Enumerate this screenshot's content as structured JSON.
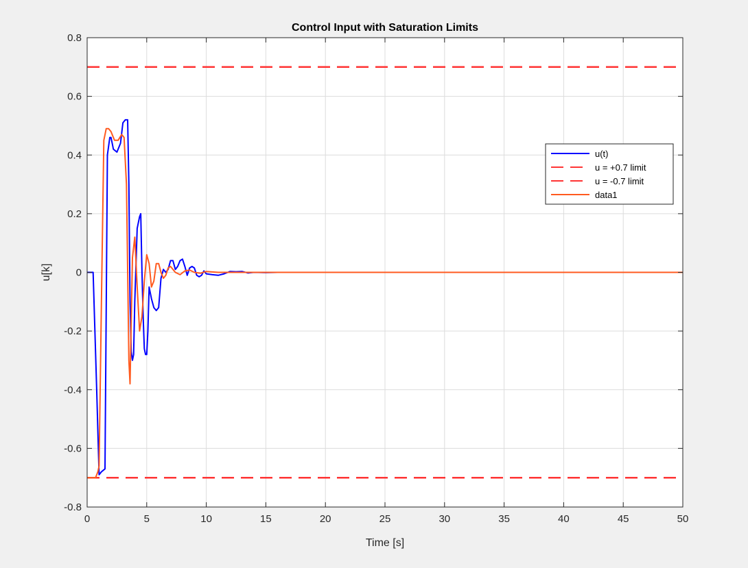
{
  "chart_data": {
    "type": "line",
    "title": "Control Input with Saturation Limits",
    "xlabel": "Time [s]",
    "ylabel": "u[k]",
    "xlim": [
      0,
      50
    ],
    "ylim": [
      -0.8,
      0.8
    ],
    "xticks": [
      0,
      5,
      10,
      15,
      20,
      25,
      30,
      35,
      40,
      45,
      50
    ],
    "xtick_labels": [
      "0",
      "5",
      "10",
      "15",
      "20",
      "25",
      "30",
      "35",
      "40",
      "45",
      "50"
    ],
    "yticks": [
      -0.8,
      -0.6,
      -0.4,
      -0.2,
      0,
      0.2,
      0.4,
      0.6,
      0.8
    ],
    "ytick_labels": [
      "-0.8",
      "-0.6",
      "-0.4",
      "-0.2",
      "0",
      "0.2",
      "0.4",
      "0.6",
      "0.8"
    ],
    "grid": true,
    "legend_position": "top-right",
    "series": [
      {
        "name": "u(t)",
        "color": "#0000ff",
        "style": "solid",
        "x": [
          0,
          0.5,
          0.8,
          1.0,
          1.2,
          1.5,
          1.7,
          1.9,
          2.0,
          2.1,
          2.2,
          2.5,
          2.8,
          3.0,
          3.2,
          3.4,
          3.5,
          3.6,
          3.7,
          3.8,
          3.9,
          4.0,
          4.2,
          4.4,
          4.5,
          4.6,
          4.7,
          4.8,
          4.9,
          5.0,
          5.1,
          5.2,
          5.4,
          5.6,
          5.8,
          6.0,
          6.2,
          6.4,
          6.6,
          6.8,
          7.0,
          7.2,
          7.4,
          7.6,
          7.8,
          8.0,
          8.2,
          8.4,
          8.6,
          8.8,
          9.0,
          9.2,
          9.4,
          9.6,
          9.8,
          10.0,
          10.5,
          11.0,
          11.5,
          12.0,
          12.5,
          13.0,
          13.5,
          14.0,
          15.0,
          16.0,
          17.0,
          18.0
        ],
        "y": [
          0,
          0,
          -0.4,
          -0.69,
          -0.68,
          -0.67,
          0.4,
          0.46,
          0.46,
          0.44,
          0.42,
          0.41,
          0.44,
          0.51,
          0.52,
          0.52,
          0.3,
          -0.1,
          -0.27,
          -0.3,
          -0.28,
          -0.1,
          0.15,
          0.19,
          0.2,
          0.0,
          -0.15,
          -0.26,
          -0.28,
          -0.28,
          -0.2,
          -0.05,
          -0.09,
          -0.12,
          -0.13,
          -0.12,
          -0.02,
          0.01,
          0.0,
          0.01,
          0.04,
          0.04,
          0.01,
          0.02,
          0.04,
          0.045,
          0.02,
          -0.01,
          0.015,
          0.02,
          0.015,
          -0.01,
          -0.015,
          -0.01,
          0.005,
          -0.005,
          -0.008,
          -0.01,
          -0.005,
          0.003,
          0.002,
          0.003,
          -0.002,
          0.0,
          -0.001,
          0.0,
          0.0,
          0.0
        ]
      },
      {
        "name": "u = +0.7 limit",
        "color": "#ff3333",
        "style": "dashed",
        "x": [
          0,
          50
        ],
        "y": [
          0.7,
          0.7
        ]
      },
      {
        "name": "u = -0.7 limit",
        "color": "#ff3333",
        "style": "dashed",
        "x": [
          0,
          50
        ],
        "y": [
          -0.7,
          -0.7
        ]
      },
      {
        "name": "data1",
        "color": "#ff5a1f",
        "style": "solid",
        "x": [
          0,
          0.7,
          0.9,
          1.0,
          1.2,
          1.4,
          1.6,
          1.8,
          2.0,
          2.3,
          2.6,
          2.9,
          3.1,
          3.3,
          3.5,
          3.6,
          3.8,
          4.0,
          4.2,
          4.4,
          4.6,
          4.8,
          5.0,
          5.2,
          5.4,
          5.6,
          5.8,
          6.0,
          6.2,
          6.4,
          6.6,
          6.8,
          7.0,
          7.4,
          7.8,
          8.2,
          8.6,
          9.0,
          9.5,
          10,
          11,
          12,
          13,
          15,
          20,
          30,
          40,
          50
        ],
        "y": [
          -0.7,
          -0.7,
          -0.68,
          -0.66,
          -0.1,
          0.45,
          0.49,
          0.49,
          0.48,
          0.45,
          0.45,
          0.47,
          0.46,
          0.3,
          -0.3,
          -0.38,
          0.05,
          0.12,
          -0.05,
          -0.2,
          -0.15,
          -0.03,
          0.06,
          0.03,
          -0.05,
          -0.03,
          0.03,
          0.03,
          0.0,
          -0.02,
          -0.01,
          0.015,
          0.02,
          0.0,
          -0.008,
          0.005,
          0.008,
          0.0,
          -0.003,
          0.003,
          0.0,
          0.0,
          0.0,
          0.0,
          0.0,
          0.0,
          0.0,
          0.0
        ]
      }
    ]
  }
}
